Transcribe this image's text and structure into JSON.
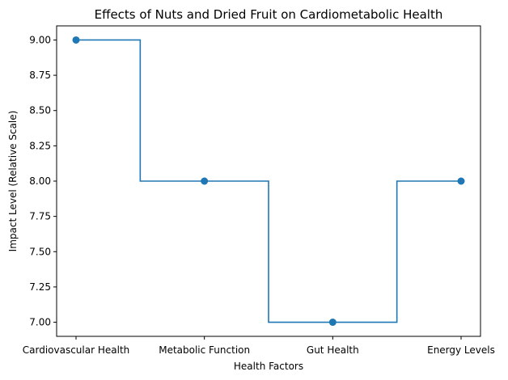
{
  "chart_data": {
    "type": "line",
    "title": "Effects of Nuts and Dried Fruit on Cardiometabolic Health",
    "xlabel": "Health Factors",
    "ylabel": "Impact Level (Relative Scale)",
    "categories": [
      "Cardiovascular Health",
      "Metabolic Function",
      "Gut Health",
      "Energy Levels"
    ],
    "series": [
      {
        "values": [
          9,
          8,
          7,
          8
        ],
        "color": "#1f77b4",
        "step": "mid",
        "marker": "circle"
      }
    ],
    "ylim": [
      6.9,
      9.1
    ],
    "yticks": [
      7.0,
      7.25,
      7.5,
      7.75,
      8.0,
      8.25,
      8.5,
      8.75,
      9.0
    ],
    "ytick_labels": [
      "7.00",
      "7.25",
      "7.50",
      "7.75",
      "8.00",
      "8.25",
      "8.50",
      "8.75",
      "9.00"
    ],
    "grid": false,
    "legend": "none"
  }
}
